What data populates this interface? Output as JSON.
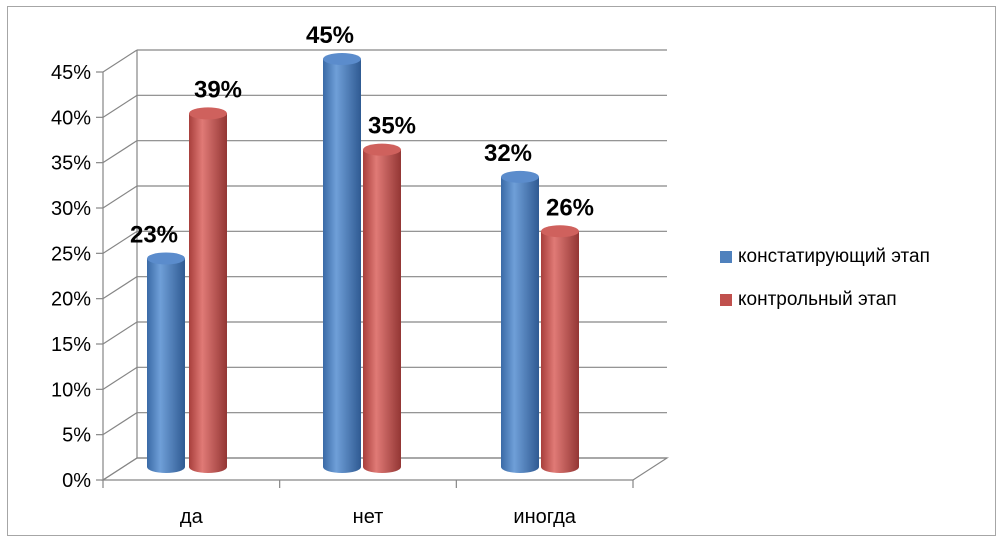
{
  "chart_data": {
    "type": "bar",
    "categories": [
      "да",
      "нет",
      "иногда"
    ],
    "series": [
      {
        "name": "констатирующий этап",
        "values": [
          23,
          45,
          32
        ],
        "color": "#4f81bd"
      },
      {
        "name": "контрольный этап",
        "values": [
          39,
          35,
          26
        ],
        "color": "#c0504d"
      }
    ],
    "value_labels": [
      [
        "23%",
        "45%",
        "32%"
      ],
      [
        "39%",
        "35%",
        "26%"
      ]
    ],
    "y_ticks": [
      "0%",
      "5%",
      "10%",
      "15%",
      "20%",
      "25%",
      "30%",
      "35%",
      "40%",
      "45%"
    ],
    "ylim": [
      0,
      45
    ],
    "y_unit": "%",
    "grid": true,
    "legend_position": "right",
    "style": "3d-cylinder"
  }
}
